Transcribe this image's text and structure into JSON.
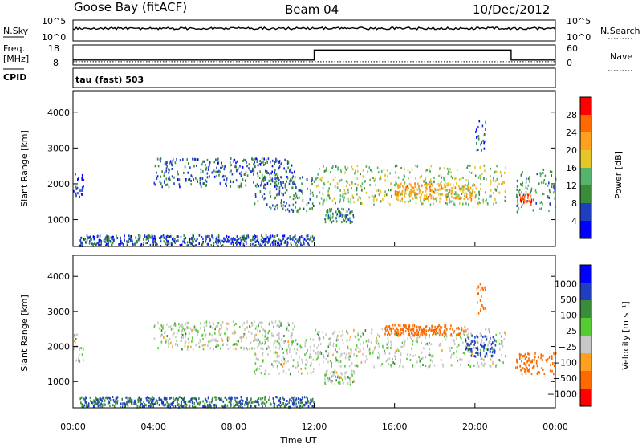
{
  "header": {
    "station": "Goose Bay (fitACF)",
    "beam": "Beam 04",
    "date": "10/Dec/2012"
  },
  "noise_panel": {
    "left_label": "N.Sky",
    "left_ticks": [
      "10^5",
      "10^0"
    ],
    "right_ticks": [
      "10^5",
      "10^0"
    ],
    "right_label": "N.Search"
  },
  "freq_panel": {
    "left_label_1": "Freq.",
    "left_label_2": "[MHz]",
    "left_ticks": [
      "18",
      "8"
    ],
    "right_ticks": [
      "60",
      "0"
    ],
    "right_label": "Nave",
    "cpid_label": "CPID",
    "cpid_value": "tau (fast) 503"
  },
  "colors": {
    "power_scale": [
      "#0000ff",
      "#1f3fbf",
      "#3a8c3a",
      "#55b36b",
      "#e6c628",
      "#ffa01e",
      "#ff6a00",
      "#ff0000"
    ],
    "velocity_scale": [
      "#0000ff",
      "#1f3fbf",
      "#3a8c3a",
      "#55cc33",
      "#c8c8c8",
      "#ffa01e",
      "#ff6a00",
      "#ff0000"
    ]
  },
  "chart_data": [
    {
      "type": "heatmap",
      "panel": "power",
      "ylabel": "Slant Range [km]",
      "y_ticks": [
        "4000",
        "3000",
        "2000",
        "1000"
      ],
      "y_tick_values": [
        4000,
        3000,
        2000,
        1000
      ],
      "ylim": [
        250,
        4600
      ],
      "x_ticks": [
        "00:00",
        "04:00",
        "08:00",
        "12:00",
        "16:00",
        "20:00",
        "00:00"
      ],
      "xlim_hours": [
        0,
        24
      ],
      "colorbar_label": "Power [dB]",
      "colorbar_ticks": [
        "28",
        "24",
        "20",
        "16",
        "12",
        "8",
        "4"
      ],
      "colorbar_range": [
        0,
        30
      ],
      "regions": [
        {
          "time_hours": [
            0.0,
            0.5
          ],
          "range_km": [
            1550,
            2350
          ],
          "power_db": 5
        },
        {
          "time_hours": [
            0.3,
            12.0
          ],
          "range_km": [
            250,
            550
          ],
          "power_db": 6
        },
        {
          "time_hours": [
            4.0,
            11.0
          ],
          "range_km": [
            1900,
            2700
          ],
          "power_db": 7
        },
        {
          "time_hours": [
            9.0,
            12.0
          ],
          "range_km": [
            1200,
            2200
          ],
          "power_db": 8
        },
        {
          "time_hours": [
            12.0,
            21.5
          ],
          "range_km": [
            1400,
            2500
          ],
          "power_db": 14
        },
        {
          "time_hours": [
            16.0,
            20.0
          ],
          "range_km": [
            1550,
            2000
          ],
          "power_db": 20
        },
        {
          "time_hours": [
            12.5,
            14.0
          ],
          "range_km": [
            900,
            1300
          ],
          "power_db": 8
        },
        {
          "time_hours": [
            20.0,
            20.5
          ],
          "range_km": [
            2900,
            3800
          ],
          "power_db": 6
        },
        {
          "time_hours": [
            22.0,
            24.0
          ],
          "range_km": [
            1200,
            2400
          ],
          "power_db": 10
        },
        {
          "time_hours": [
            22.2,
            22.8
          ],
          "range_km": [
            1400,
            1700
          ],
          "power_db": 26
        }
      ]
    },
    {
      "type": "heatmap",
      "panel": "velocity",
      "ylabel": "Slant Range [km]",
      "y_ticks": [
        "4000",
        "3000",
        "2000",
        "1000"
      ],
      "y_tick_values": [
        4000,
        3000,
        2000,
        1000
      ],
      "ylim": [
        250,
        4600
      ],
      "x_ticks": [
        "00:00",
        "04:00",
        "08:00",
        "12:00",
        "16:00",
        "20:00",
        "00:00"
      ],
      "xlim_hours": [
        0,
        24
      ],
      "xlabel": "Time UT",
      "colorbar_label": "Velocity [m s⁻¹]",
      "colorbar_ticks": [
        "1000",
        "500",
        "100",
        "25",
        "−25",
        "−100",
        "−500",
        "−1000"
      ],
      "regions": [
        {
          "time_hours": [
            0.0,
            0.5
          ],
          "range_km": [
            1550,
            2350
          ],
          "velocity": 0
        },
        {
          "time_hours": [
            0.3,
            12.0
          ],
          "range_km": [
            250,
            550
          ],
          "velocity": 100
        },
        {
          "time_hours": [
            4.0,
            11.0
          ],
          "range_km": [
            1900,
            2700
          ],
          "velocity": 0
        },
        {
          "time_hours": [
            9.0,
            12.0
          ],
          "range_km": [
            1200,
            2200
          ],
          "velocity": 0
        },
        {
          "time_hours": [
            12.0,
            21.5
          ],
          "range_km": [
            1400,
            2500
          ],
          "velocity": 0
        },
        {
          "time_hours": [
            15.5,
            19.5
          ],
          "range_km": [
            2300,
            2600
          ],
          "velocity": -200
        },
        {
          "time_hours": [
            19.5,
            21.0
          ],
          "range_km": [
            1700,
            2300
          ],
          "velocity": 300
        },
        {
          "time_hours": [
            20.0,
            20.5
          ],
          "range_km": [
            2900,
            3800
          ],
          "velocity": -300
        },
        {
          "time_hours": [
            22.0,
            24.0
          ],
          "range_km": [
            1200,
            1800
          ],
          "velocity": -300
        },
        {
          "time_hours": [
            12.5,
            14.0
          ],
          "range_km": [
            900,
            1300
          ],
          "velocity": 0
        }
      ]
    }
  ],
  "noise_series": {
    "sky_level": 0.6
  },
  "freq_series": {
    "steps": [
      {
        "time_hours": [
          0.0,
          12.0
        ],
        "freq_mhz": 10.5
      },
      {
        "time_hours": [
          12.0,
          21.8
        ],
        "freq_mhz": 15.5
      },
      {
        "time_hours": [
          21.8,
          24.0
        ],
        "freq_mhz": 10.5
      }
    ],
    "nave_level": 10
  }
}
